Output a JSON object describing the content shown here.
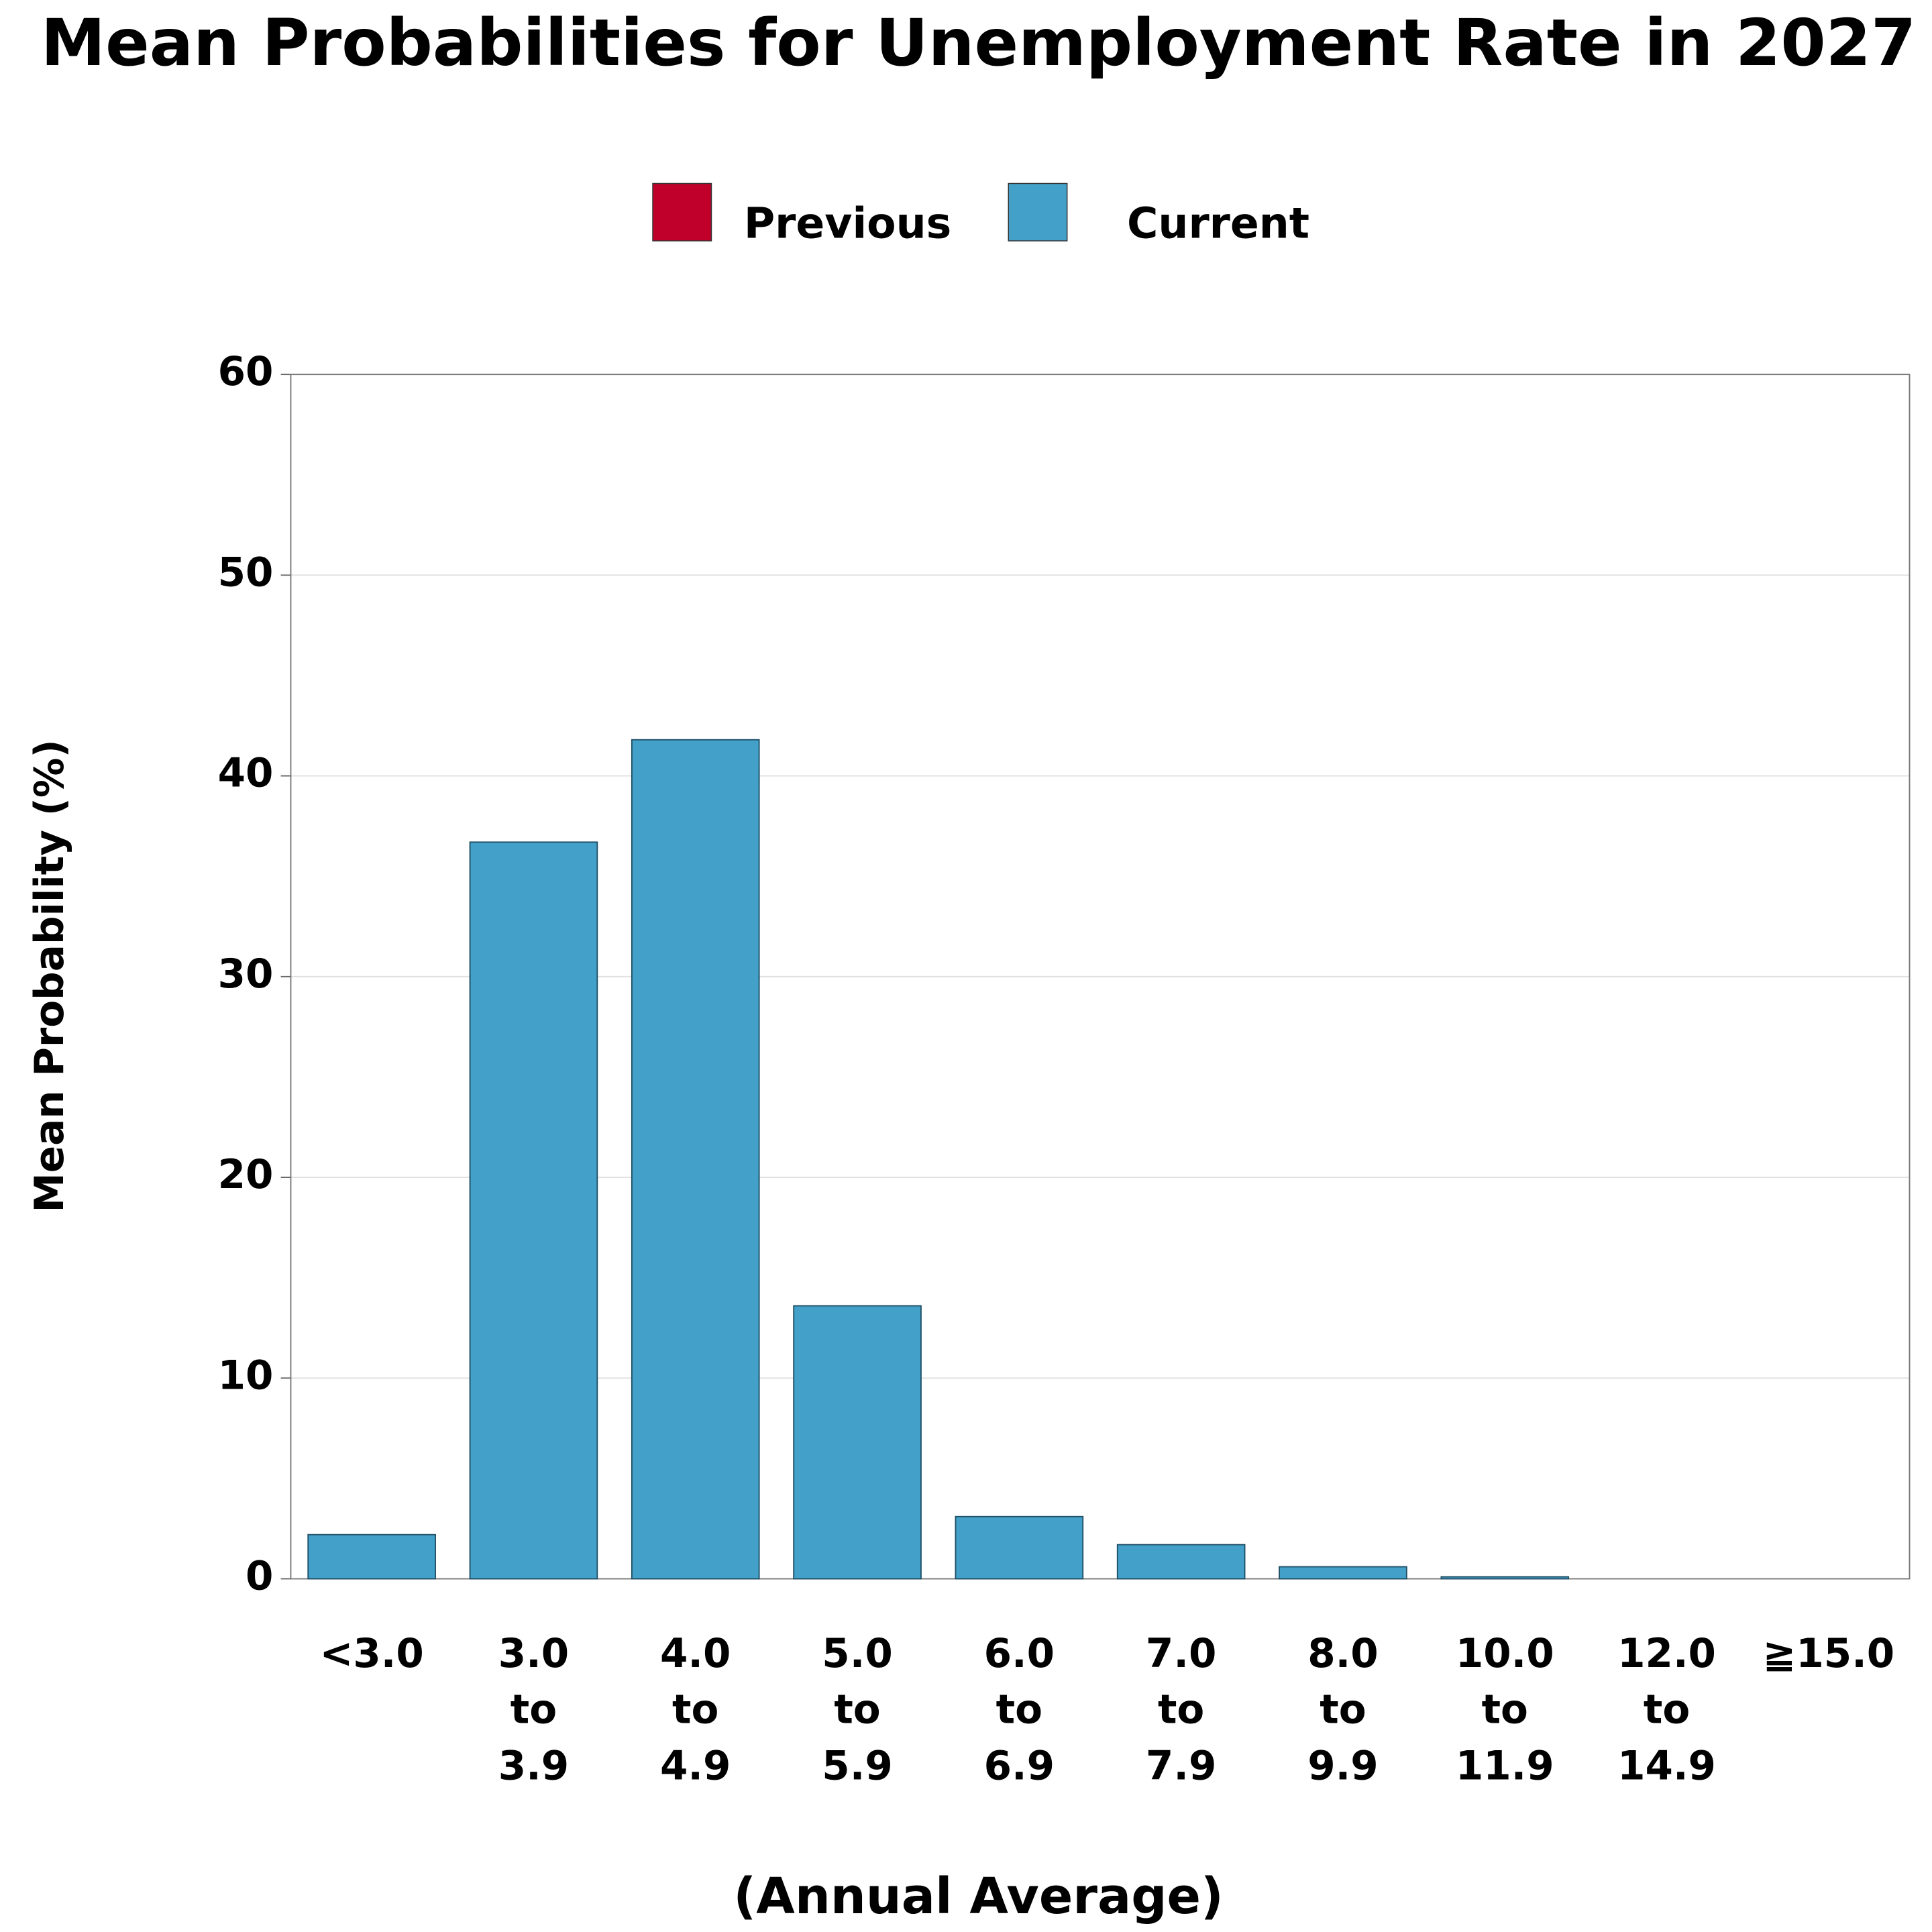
{
  "chart_data": {
    "type": "bar",
    "title": "Mean Probabilities for Unemployment Rate in 2027",
    "ylabel": "Mean Probability (%)",
    "xlabel": "(Annual Average)",
    "categories": [
      [
        "<3.0"
      ],
      [
        "3.0",
        "to",
        "3.9"
      ],
      [
        "4.0",
        "to",
        "4.9"
      ],
      [
        "5.0",
        "to",
        "5.9"
      ],
      [
        "6.0",
        "to",
        "6.9"
      ],
      [
        "7.0",
        "to",
        "7.9"
      ],
      [
        "8.0",
        "to",
        "9.9"
      ],
      [
        "10.0",
        "to",
        "11.9"
      ],
      [
        "12.0",
        "to",
        "14.9"
      ],
      [
        "≧15.0"
      ]
    ],
    "series": [
      {
        "name": "Previous",
        "color": "#c0002a",
        "values": [
          null,
          null,
          null,
          null,
          null,
          null,
          null,
          null,
          null,
          null
        ]
      },
      {
        "name": "Current",
        "color": "#43a1c9",
        "values": [
          2.2,
          36.7,
          41.8,
          13.6,
          3.1,
          1.7,
          0.6,
          0.1,
          0,
          0
        ]
      }
    ],
    "ylim": [
      0,
      60
    ],
    "yticks": [
      0,
      10,
      20,
      30,
      40,
      50,
      60
    ],
    "grid": true
  }
}
